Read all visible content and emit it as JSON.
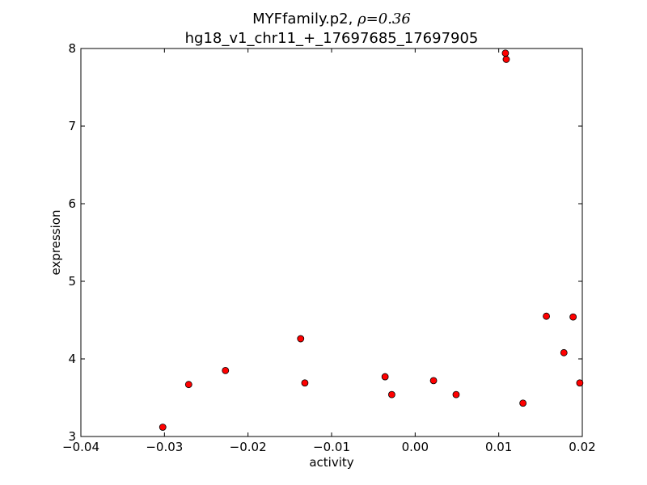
{
  "chart_data": {
    "type": "scatter",
    "title_line1_prefix": "MYFfamily.p2, ",
    "title_line1_math": "ρ=0.36",
    "title_line2": "hg18_v1_chr11_+_17697685_17697905",
    "xlabel": "activity",
    "ylabel": "expression",
    "xlim": [
      -0.04,
      0.02
    ],
    "ylim": [
      3,
      8
    ],
    "xticks": [
      -0.04,
      -0.03,
      -0.02,
      -0.01,
      0.0,
      0.01,
      0.02
    ],
    "xtick_labels": [
      "−0.04",
      "−0.03",
      "−0.02",
      "−0.01",
      "0.00",
      "0.01",
      "0.02"
    ],
    "yticks": [
      3,
      4,
      5,
      6,
      7,
      8
    ],
    "ytick_labels": [
      "3",
      "4",
      "5",
      "6",
      "7",
      "8"
    ],
    "marker_color": "#ff0000",
    "marker_edge_color": "#000000",
    "grid": false,
    "points": [
      {
        "x": -0.0302,
        "y": 3.12
      },
      {
        "x": -0.0271,
        "y": 3.67
      },
      {
        "x": -0.0227,
        "y": 3.85
      },
      {
        "x": -0.0137,
        "y": 4.26
      },
      {
        "x": -0.0132,
        "y": 3.69
      },
      {
        "x": -0.0036,
        "y": 3.77
      },
      {
        "x": -0.0028,
        "y": 3.54
      },
      {
        "x": 0.0022,
        "y": 3.72
      },
      {
        "x": 0.0049,
        "y": 3.54
      },
      {
        "x": 0.0108,
        "y": 7.94
      },
      {
        "x": 0.0109,
        "y": 7.86
      },
      {
        "x": 0.0129,
        "y": 3.43
      },
      {
        "x": 0.0157,
        "y": 4.55
      },
      {
        "x": 0.0178,
        "y": 4.08
      },
      {
        "x": 0.0189,
        "y": 4.54
      },
      {
        "x": 0.0197,
        "y": 3.69
      }
    ]
  }
}
